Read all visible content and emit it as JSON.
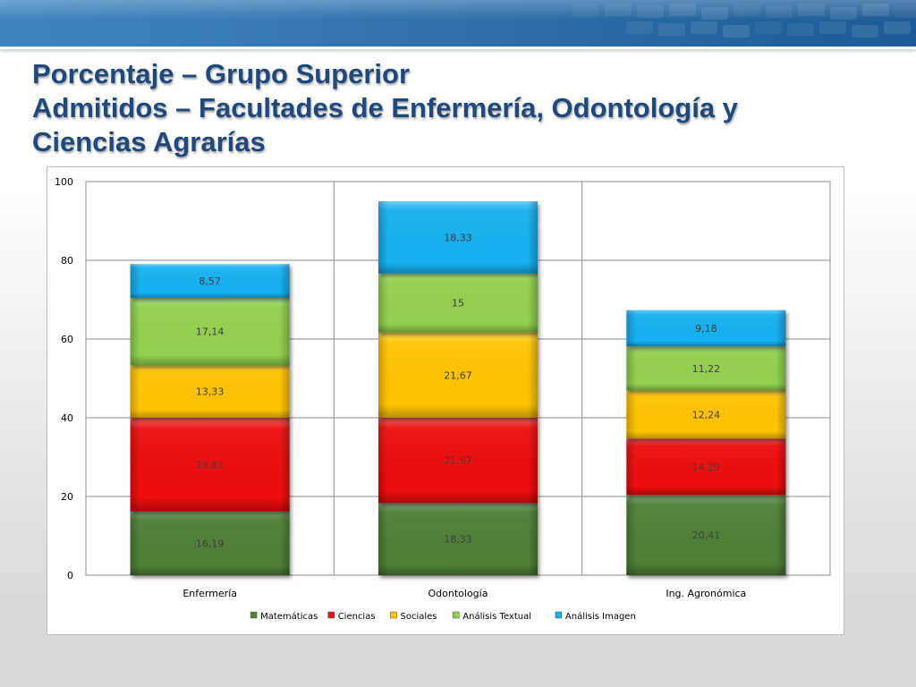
{
  "slide": {
    "title_lines": [
      "Porcentaje – Grupo Superior",
      "Admitidos – Facultades de Enfermería, Odontología y",
      "Ciencias Agrarías"
    ]
  },
  "chart_data": {
    "type": "bar",
    "stacked": true,
    "categories": [
      "Enfermería",
      "Odontología",
      "Ing. Agronómica"
    ],
    "series": [
      {
        "name": "Matemáticas",
        "values": [
          16.19,
          18.33,
          20.41
        ],
        "labels": [
          "16,19",
          "18,33",
          "20,41"
        ],
        "color": "#4f7f34"
      },
      {
        "name": "Ciencias",
        "values": [
          23.81,
          21.67,
          14.29
        ],
        "labels": [
          "23,81",
          "21,67",
          "14,29"
        ],
        "color": "#ee1111"
      },
      {
        "name": "Sociales",
        "values": [
          13.33,
          21.67,
          12.24
        ],
        "labels": [
          "13,33",
          "21,67",
          "12,24"
        ],
        "color": "#ffc400"
      },
      {
        "name": "Análisis Textual",
        "values": [
          17.14,
          15,
          11.22
        ],
        "labels": [
          "17,14",
          "15",
          "11,22"
        ],
        "color": "#92d050"
      },
      {
        "name": "Análisis Imagen",
        "values": [
          8.57,
          18.33,
          9.18
        ],
        "labels": [
          "8,57",
          "18,33",
          "9,18"
        ],
        "color": "#12b0f0"
      }
    ],
    "ylim": [
      0,
      100
    ],
    "yticks": [
      0,
      20,
      40,
      60,
      80,
      100
    ],
    "grid": true,
    "legend": "bottom"
  }
}
